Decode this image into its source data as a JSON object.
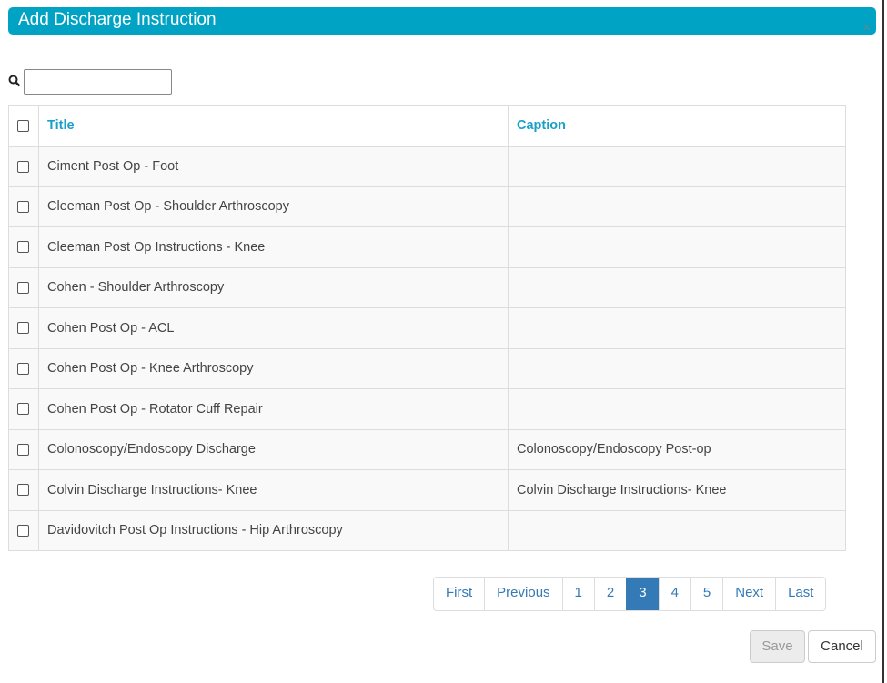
{
  "dialog": {
    "title": "Add Discharge Instruction",
    "close": "×"
  },
  "search": {
    "value": "",
    "placeholder": ""
  },
  "table": {
    "headers": [
      "Title",
      "Caption"
    ],
    "rows": [
      {
        "title": "Ciment Post Op - Foot",
        "caption": ""
      },
      {
        "title": "Cleeman Post Op - Shoulder Arthroscopy",
        "caption": ""
      },
      {
        "title": "Cleeman Post Op Instructions - Knee",
        "caption": ""
      },
      {
        "title": "Cohen - Shoulder Arthroscopy",
        "caption": ""
      },
      {
        "title": "Cohen Post Op - ACL",
        "caption": ""
      },
      {
        "title": "Cohen Post Op - Knee Arthroscopy",
        "caption": ""
      },
      {
        "title": "Cohen Post Op - Rotator Cuff Repair",
        "caption": ""
      },
      {
        "title": "Colonoscopy/Endoscopy Discharge",
        "caption": "Colonoscopy/Endoscopy Post-op"
      },
      {
        "title": "Colvin Discharge Instructions- Knee",
        "caption": "Colvin Discharge Instructions- Knee"
      },
      {
        "title": "Davidovitch Post Op Instructions - Hip Arthroscopy",
        "caption": ""
      }
    ]
  },
  "pagination": {
    "items": [
      "First",
      "Previous",
      "1",
      "2",
      "3",
      "4",
      "5",
      "Next",
      "Last"
    ],
    "active": "3"
  },
  "footer": {
    "save": "Save",
    "cancel": "Cancel"
  },
  "colors": {
    "header": "#00a3c4",
    "accent": "#337ab7"
  }
}
